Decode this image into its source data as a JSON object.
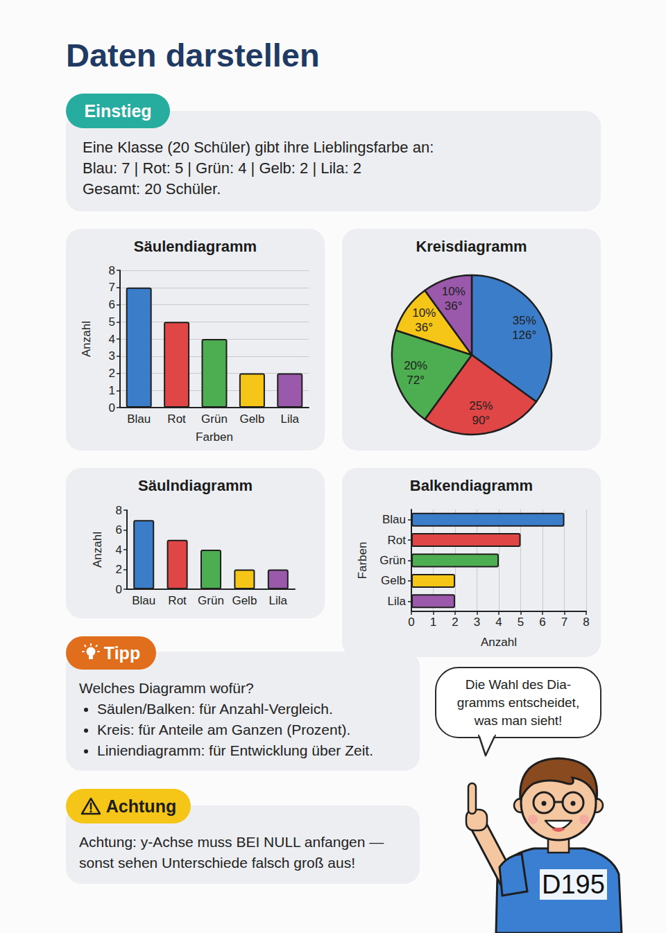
{
  "title": "Daten darstellen",
  "intro": {
    "badge": "Einstieg",
    "lines": [
      "Eine Klasse (20 Schüler) gibt ihre Lieblingsfarbe an:",
      "Blau: 7 | Rot: 5 | Grün: 4 | Gelb: 2 | Lila: 2",
      "Gesamt: 20 Schüler."
    ]
  },
  "chart_data": [
    {
      "type": "bar",
      "title": "Säulendiagramm",
      "categories": [
        "Blau",
        "Rot",
        "Grün",
        "Gelb",
        "Lila"
      ],
      "values": [
        7,
        5,
        4,
        2,
        2
      ],
      "colors": [
        "#3b7dc8",
        "#e04646",
        "#4cae50",
        "#f5c518",
        "#9b59ab"
      ],
      "ylim": [
        0,
        8
      ],
      "yticks": [
        0,
        1,
        2,
        3,
        4,
        5,
        6,
        7,
        8
      ],
      "y_label": "Anzahl",
      "x_label": "Farben",
      "grid": true
    },
    {
      "type": "pie",
      "title": "Kreisdiagramm",
      "categories": [
        "Blau",
        "Rot",
        "Grün",
        "Gelb",
        "Lila"
      ],
      "values": [
        35,
        25,
        20,
        10,
        10
      ],
      "value_labels": [
        "35%",
        "25%",
        "20%",
        "10%",
        "10%"
      ],
      "angle_labels": [
        "126°",
        "90°",
        "72°",
        "36°",
        "36°"
      ],
      "colors": [
        "#3b7dc8",
        "#e04646",
        "#4cae50",
        "#f5c518",
        "#9b59ab"
      ],
      "data_labels": true
    },
    {
      "type": "bar",
      "title": "Säulndiagramm",
      "categories": [
        "Blau",
        "Rot",
        "Grün",
        "Gelb",
        "Lila"
      ],
      "values": [
        7,
        5,
        4,
        2,
        2
      ],
      "colors": [
        "#3b7dc8",
        "#e04646",
        "#4cae50",
        "#f5c518",
        "#9b59ab"
      ],
      "ylim": [
        0,
        8
      ],
      "yticks": [
        0,
        2,
        4,
        6,
        8
      ],
      "y_label": "Anzahl",
      "grid": false
    },
    {
      "type": "bar",
      "title": "Balkendiagramm",
      "orientation": "horizontal",
      "categories": [
        "Blau",
        "Rot",
        "Grün",
        "Gelb",
        "Lila"
      ],
      "values": [
        7,
        5,
        4,
        2,
        2
      ],
      "colors": [
        "#3b7dc8",
        "#e04646",
        "#4cae50",
        "#f5c518",
        "#9b59ab"
      ],
      "xlim": [
        0,
        8
      ],
      "xticks": [
        0,
        1,
        2,
        3,
        4,
        5,
        6,
        7,
        8
      ],
      "x_label": "Anzahl",
      "y_label": "Farben",
      "grid": true
    }
  ],
  "tip": {
    "badge": "Tipp",
    "heading": "Welches Diagramm wofür?",
    "bullets": [
      "Säulen/Balken: für Anzahl-Vergleich.",
      "Kreis: für Anteile am Ganzen (Prozent).",
      "Liniendiagramm: für Entwicklung über Zeit."
    ]
  },
  "warning": {
    "badge": "Achtung",
    "lines": [
      "Achtung: y-Achse muss BEI NULL anfangen —",
      "sonst sehen Unterschiede falsch groß aus!"
    ]
  },
  "speech_bubble": {
    "lines": [
      "Die Wahl des Dia-",
      "gramms entscheidet,",
      "was man sieht!"
    ]
  },
  "page_number": "D195"
}
